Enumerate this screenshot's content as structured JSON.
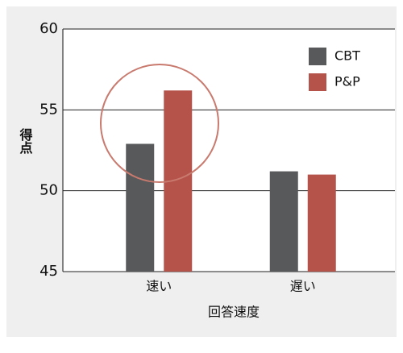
{
  "chart_data": {
    "type": "bar",
    "categories": [
      "速い",
      "遅い"
    ],
    "series": [
      {
        "name": "CBT",
        "color": "#58595b",
        "values": [
          52.9,
          51.2
        ]
      },
      {
        "name": "P&P",
        "color": "#b5524a",
        "values": [
          56.2,
          51.0
        ]
      }
    ],
    "ylim": [
      45,
      60
    ],
    "yticks": [
      45,
      50,
      55,
      60
    ],
    "grid": true,
    "xlabel": "回答速度",
    "ylabel": "得点",
    "legend": "upper right"
  }
}
